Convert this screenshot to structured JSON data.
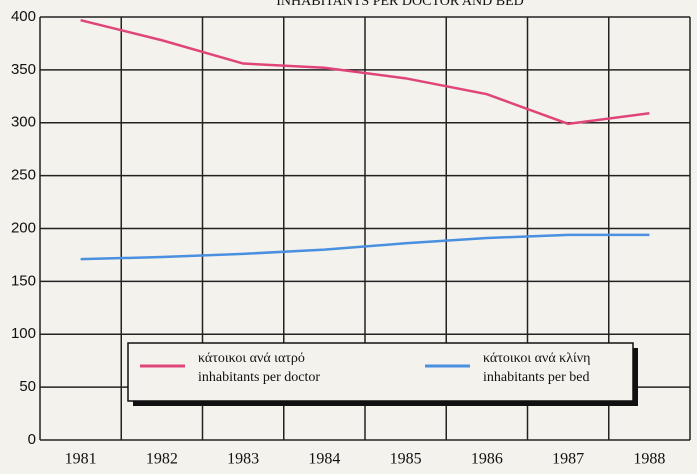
{
  "chart_data": {
    "type": "line",
    "title": "INHABITANTS PER DOCTOR AND BED",
    "categories": [
      "1981",
      "1982",
      "1983",
      "1984",
      "1985",
      "1986",
      "1987",
      "1988"
    ],
    "series": [
      {
        "name": "κάτοικοι ανά ιατρό",
        "name_en": "inhabitants per doctor",
        "color": "#e0457a",
        "values": [
          397,
          378,
          356,
          352,
          342,
          327,
          299,
          309
        ]
      },
      {
        "name": "κάτοικοι ανά κλίνη",
        "name_en": "inhabitants per bed",
        "color": "#4a90e0",
        "values": [
          171,
          173,
          176,
          180,
          186,
          191,
          194,
          194
        ]
      }
    ],
    "ylim": [
      0,
      400
    ],
    "yticks": [
      0,
      50,
      100,
      150,
      200,
      250,
      300,
      350,
      400
    ],
    "grid": true
  }
}
